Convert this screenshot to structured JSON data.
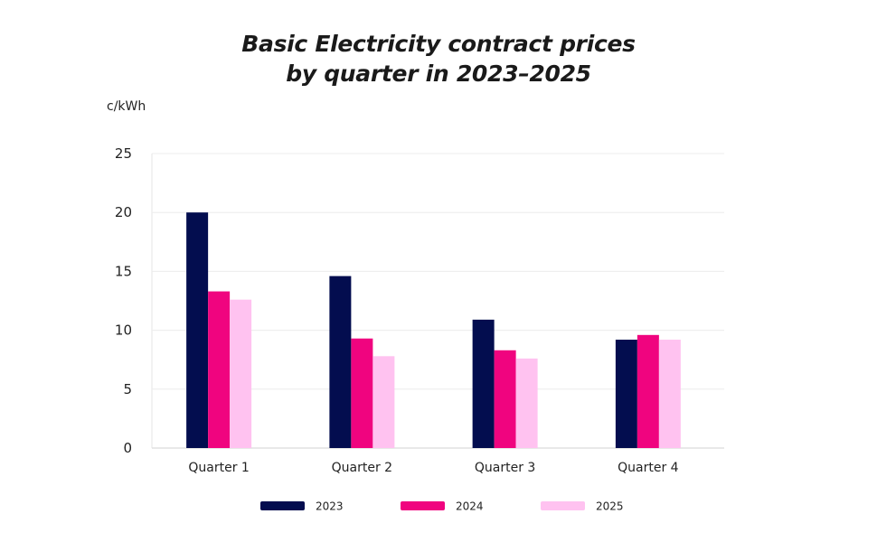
{
  "chart_data": {
    "type": "bar",
    "title": "Basic Electricity contract prices by quarter in 2023–2025",
    "title_lines": [
      "Basic Electricity contract prices",
      "by quarter in 2023–2025"
    ],
    "xlabel": "",
    "ylabel": "c/kWh",
    "ylim": [
      0,
      25
    ],
    "yticks": [
      0,
      5,
      10,
      15,
      20,
      25
    ],
    "grid": true,
    "legend_position": "bottom",
    "categories": [
      "Quarter 1",
      "Quarter 2",
      "Quarter 3",
      "Quarter 4"
    ],
    "series": [
      {
        "name": "2023",
        "color": "#030d4f",
        "values": [
          20.0,
          14.6,
          10.9,
          9.2
        ]
      },
      {
        "name": "2024",
        "color": "#f0047f",
        "values": [
          13.3,
          9.3,
          8.3,
          9.6
        ]
      },
      {
        "name": "2025",
        "color": "#ffc2f0",
        "values": [
          12.6,
          7.8,
          7.6,
          9.2
        ]
      }
    ]
  }
}
